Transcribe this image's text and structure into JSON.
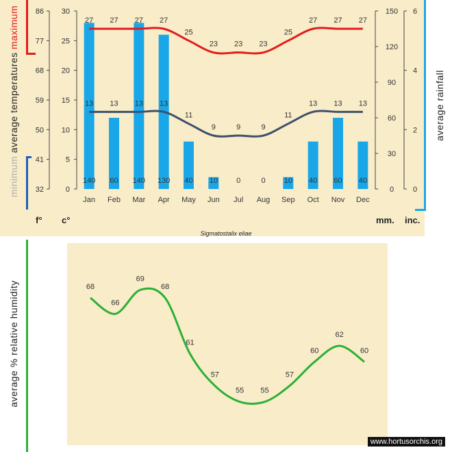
{
  "chart_data": [
    {
      "type": "bar",
      "title": "",
      "caption": "Sigmatostalix eliae",
      "categories": [
        "Jan",
        "Feb",
        "Mar",
        "Apr",
        "May",
        "Jun",
        "Jul",
        "Aug",
        "Sep",
        "Oct",
        "Nov",
        "Dec"
      ],
      "y_left_f": {
        "ticks": [
          32,
          41,
          50,
          59,
          68,
          77,
          86
        ],
        "unit": "f°"
      },
      "y_left_c": {
        "ticks": [
          0,
          5,
          10,
          15,
          20,
          25,
          30
        ],
        "ylim": [
          0,
          30
        ],
        "unit": "c°"
      },
      "y_right_mm": {
        "ticks": [
          0,
          30,
          60,
          90,
          120,
          150
        ],
        "ylim": [
          0,
          150
        ],
        "unit": "mm."
      },
      "y_right_inc": {
        "ticks": [
          0,
          2,
          4,
          6
        ],
        "unit": "inc."
      },
      "left_title_min": "minimum",
      "left_title_rest": "average  temperatures",
      "left_title_max": "maximum",
      "right_title": "average  rainfall",
      "rainfall_labels": [
        "140",
        "60",
        "140",
        "130",
        "40",
        "10",
        "0",
        "0",
        "10",
        "40",
        "60",
        "40"
      ],
      "rainfall_bar_values": [
        140,
        60,
        140,
        130,
        40,
        10,
        0,
        0,
        10,
        40,
        60,
        40
      ],
      "series": [
        {
          "name": "maximum",
          "color": "#e31b1b",
          "values": [
            27,
            27,
            27,
            27,
            25,
            23,
            23,
            23,
            25,
            27,
            27,
            27
          ]
        },
        {
          "name": "minimum",
          "color": "#3d4f6b",
          "values": [
            13,
            13,
            13,
            13,
            11,
            9,
            9,
            9,
            11,
            13,
            13,
            13
          ]
        }
      ],
      "bar_color": "#1aa7e8"
    },
    {
      "type": "line",
      "title": "",
      "ylabel": "average %  relative humidity",
      "categories": [
        "Jan",
        "Feb",
        "Mar",
        "Apr",
        "May",
        "Jun",
        "Jul",
        "Aug",
        "Sep",
        "Oct",
        "Nov",
        "Dec"
      ],
      "series": [
        {
          "name": "",
          "color": "#2bb035",
          "values": [
            68,
            66,
            69,
            68,
            61,
            57,
            55,
            55,
            57,
            60,
            62,
            60
          ]
        }
      ],
      "ylim": [
        53,
        71
      ]
    }
  ],
  "watermark": "www.hortusorchis.org",
  "colors": {
    "red": "#e31b1b",
    "blue_axis": "#1f5fbf",
    "cyan": "#1aa7e8",
    "green": "#2bb035"
  }
}
